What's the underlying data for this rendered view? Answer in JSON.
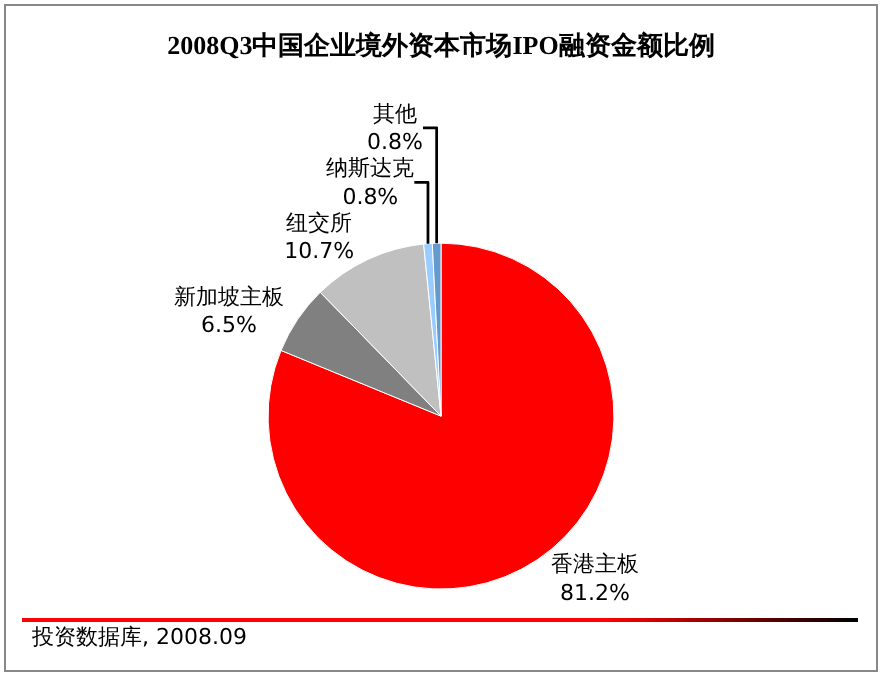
{
  "chart_data": {
    "type": "pie",
    "title": "2008Q3中国企业境外资本市场IPO融资金额比例",
    "categories": [
      "香港主板",
      "新加坡主板",
      "纽交所",
      "纳斯达克",
      "其他"
    ],
    "values": [
      81.2,
      6.5,
      10.7,
      0.8,
      0.8
    ],
    "value_labels": [
      "81.2%",
      "6.5%",
      "10.7%",
      "0.8%",
      "0.8%"
    ],
    "colors": [
      "#ff0000",
      "#808080",
      "#c0c0c0",
      "#99ccff",
      "#6699cc"
    ],
    "legend": false,
    "annotations": [
      "投资数据库, 2008.09"
    ]
  }
}
